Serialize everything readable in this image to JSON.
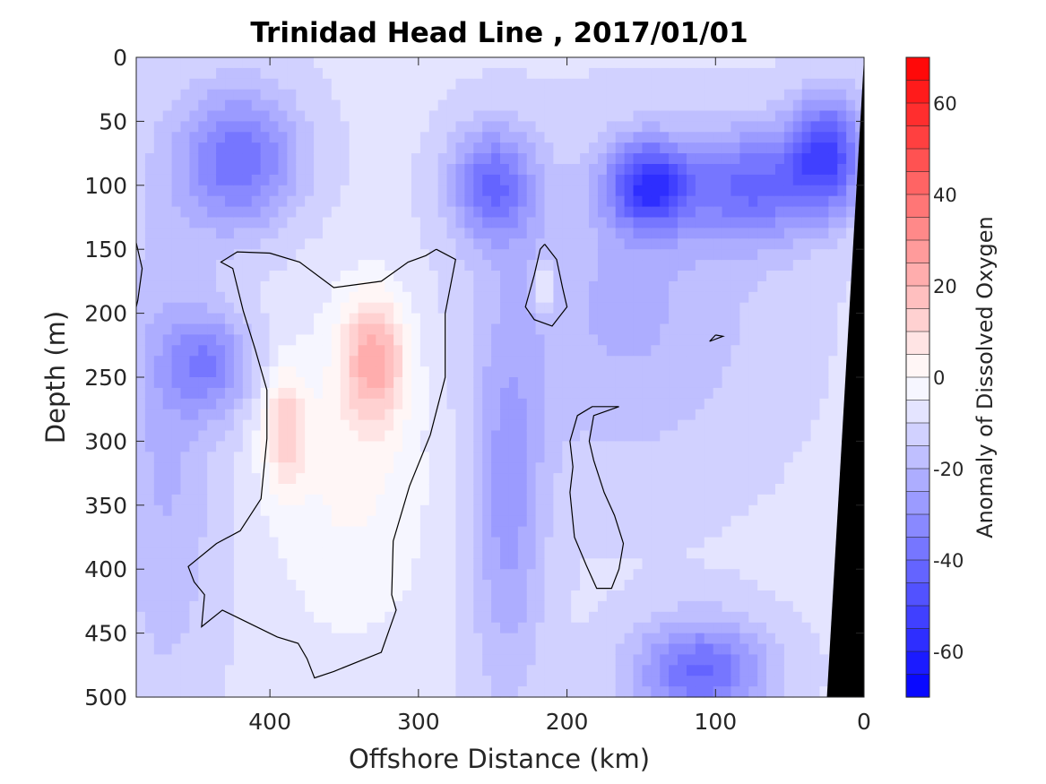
{
  "chart_data": {
    "type": "heatmap",
    "title": "Trinidad Head Line , 2017/01/01",
    "xlabel": "Offshore Distance (km)",
    "ylabel": "Depth (m)",
    "colorbar_label": "Anomaly of Dissolved Oxygen",
    "xlim": [
      490,
      0
    ],
    "ylim": [
      0,
      500
    ],
    "x_reversed": true,
    "y_reversed": true,
    "x_ticks": [
      400,
      300,
      200,
      100,
      0
    ],
    "y_ticks": [
      0,
      50,
      100,
      150,
      200,
      250,
      300,
      350,
      400,
      450,
      500
    ],
    "colorbar_range": [
      -70,
      70
    ],
    "colorbar_step": 5,
    "colorbar_ticks": [
      -60,
      -40,
      -20,
      0,
      20,
      40,
      60
    ],
    "colors": {
      "negative": "#0000ff",
      "zero": "#ffffff",
      "positive": "#ff0000",
      "land": "#000000",
      "contour": "#000000"
    },
    "features": [
      {
        "kind": "positive",
        "x": 345,
        "y": 330,
        "rx": 55,
        "ry": 125,
        "value": 10
      },
      {
        "kind": "positive",
        "x": 330,
        "y": 235,
        "rx": 22,
        "ry": 50,
        "value": 28
      },
      {
        "kind": "positive",
        "x": 390,
        "y": 290,
        "rx": 15,
        "ry": 45,
        "value": 20
      },
      {
        "kind": "positive",
        "x": 215,
        "y": 180,
        "rx": 6,
        "ry": 20,
        "value": 15
      },
      {
        "kind": "negative",
        "x": 145,
        "y": 100,
        "rx": 28,
        "ry": 35,
        "value": -42
      },
      {
        "kind": "negative",
        "x": 250,
        "y": 100,
        "rx": 28,
        "ry": 45,
        "value": -30
      },
      {
        "kind": "negative",
        "x": 420,
        "y": 80,
        "rx": 40,
        "ry": 55,
        "value": -30
      },
      {
        "kind": "negative",
        "x": 75,
        "y": 100,
        "rx": 45,
        "ry": 45,
        "value": -30
      },
      {
        "kind": "negative",
        "x": 25,
        "y": 75,
        "rx": 25,
        "ry": 45,
        "value": -38
      },
      {
        "kind": "negative",
        "x": 110,
        "y": 480,
        "rx": 45,
        "ry": 40,
        "value": -32
      },
      {
        "kind": "negative",
        "x": 240,
        "y": 350,
        "rx": 25,
        "ry": 150,
        "value": -18
      },
      {
        "kind": "negative",
        "x": 440,
        "y": 240,
        "rx": 30,
        "ry": 40,
        "value": -22
      },
      {
        "kind": "negative",
        "x": 160,
        "y": 200,
        "rx": 90,
        "ry": 120,
        "value": -12
      },
      {
        "kind": "negative",
        "x": 470,
        "y": 300,
        "rx": 35,
        "ry": 200,
        "value": -12
      }
    ],
    "zero_contours": [
      [
        [
          288,
          150
        ],
        [
          275,
          158
        ],
        [
          282,
          200
        ],
        [
          282,
          250
        ],
        [
          292,
          295
        ],
        [
          306,
          335
        ],
        [
          317,
          378
        ],
        [
          318,
          420
        ],
        [
          315,
          432
        ],
        [
          325,
          465
        ],
        [
          357,
          480
        ],
        [
          370,
          485
        ],
        [
          375,
          470
        ],
        [
          381,
          458
        ],
        [
          395,
          453
        ],
        [
          432,
          432
        ],
        [
          446,
          445
        ],
        [
          444,
          420
        ],
        [
          451,
          410
        ],
        [
          455,
          398
        ],
        [
          436,
          380
        ],
        [
          420,
          370
        ],
        [
          406,
          345
        ],
        [
          402,
          298
        ],
        [
          402,
          260
        ],
        [
          410,
          228
        ],
        [
          418,
          198
        ],
        [
          425,
          165
        ],
        [
          433,
          160
        ],
        [
          422,
          152
        ],
        [
          400,
          153
        ],
        [
          380,
          160
        ],
        [
          357,
          180
        ],
        [
          325,
          175
        ],
        [
          307,
          160
        ],
        [
          295,
          155
        ],
        [
          288,
          150
        ]
      ],
      [
        [
          215,
          146
        ],
        [
          207,
          158
        ],
        [
          203,
          180
        ],
        [
          200,
          195
        ],
        [
          210,
          210
        ],
        [
          222,
          205
        ],
        [
          228,
          195
        ],
        [
          222,
          170
        ],
        [
          218,
          150
        ],
        [
          215,
          146
        ]
      ],
      [
        [
          165,
          273
        ],
        [
          182,
          280
        ],
        [
          185,
          300
        ],
        [
          182,
          315
        ],
        [
          175,
          340
        ],
        [
          168,
          358
        ],
        [
          162,
          380
        ],
        [
          165,
          400
        ],
        [
          170,
          415
        ],
        [
          180,
          415
        ],
        [
          187,
          397
        ],
        [
          195,
          375
        ],
        [
          198,
          340
        ],
        [
          196,
          320
        ],
        [
          198,
          300
        ],
        [
          193,
          280
        ],
        [
          183,
          273
        ],
        [
          165,
          273
        ]
      ],
      [
        [
          100,
          217
        ],
        [
          104,
          222
        ],
        [
          95,
          218
        ],
        [
          100,
          217
        ]
      ],
      [
        [
          490,
          145
        ],
        [
          486,
          165
        ],
        [
          489,
          190
        ],
        [
          490,
          195
        ]
      ]
    ],
    "land_polygon": [
      [
        0,
        0
      ],
      [
        0,
        500
      ],
      [
        25,
        500
      ],
      [
        0,
        0
      ]
    ]
  }
}
